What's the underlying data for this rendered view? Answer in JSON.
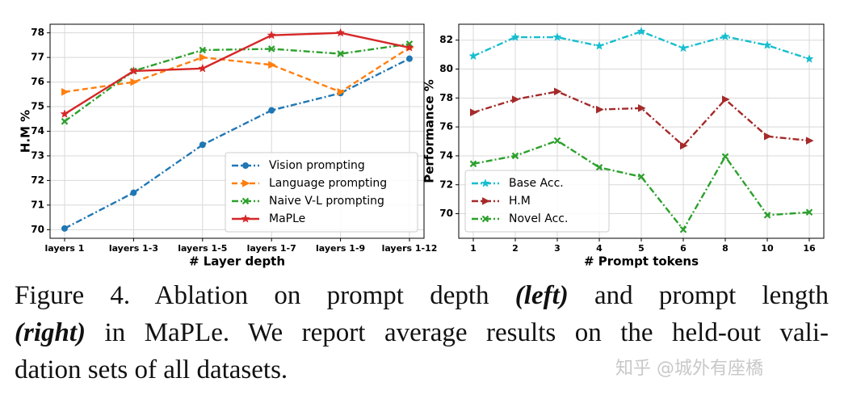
{
  "chart_data": [
    {
      "type": "line",
      "categories": [
        "layers 1",
        "layers 1-3",
        "layers 1-5",
        "layers 1-7",
        "layers 1-9",
        "layers 1-12"
      ],
      "ylim": [
        69.65,
        78.35
      ],
      "yticks": [
        70,
        71,
        72,
        73,
        74,
        75,
        76,
        77,
        78
      ],
      "ylabel": "H.M %",
      "xlabel": "# Layer depth",
      "grid": true,
      "legend": "lower right",
      "series": [
        {
          "name": "Vision prompting",
          "color": "#1f77b4",
          "linestyle": "dashdot",
          "marker": "circle",
          "values": [
            70.05,
            71.5,
            73.45,
            74.85,
            75.55,
            76.95
          ]
        },
        {
          "name": "Language prompting",
          "color": "#ff7f0e",
          "linestyle": "dashed",
          "marker": "triangle",
          "values": [
            75.6,
            76.0,
            77.0,
            76.7,
            75.6,
            77.4
          ]
        },
        {
          "name": "Naive V-L prompting",
          "color": "#2ca02c",
          "linestyle": "dashdot",
          "marker": "x",
          "values": [
            74.4,
            76.45,
            77.3,
            77.35,
            77.15,
            77.55
          ]
        },
        {
          "name": "MaPLe",
          "color": "#d62728",
          "linestyle": "solid",
          "marker": "star",
          "values": [
            74.7,
            76.45,
            76.55,
            77.9,
            78.0,
            77.4
          ]
        }
      ]
    },
    {
      "type": "line",
      "categories": [
        "1",
        "2",
        "3",
        "4",
        "5",
        "6",
        "8",
        "10",
        "16"
      ],
      "ylim": [
        68.3,
        83.1
      ],
      "yticks": [
        70,
        72,
        74,
        76,
        78,
        80,
        82
      ],
      "ylabel": "Performance %",
      "xlabel": "# Prompt tokens",
      "grid": true,
      "legend": "lower left",
      "series": [
        {
          "name": "Base Acc.",
          "color": "#17becf",
          "linestyle": "dashdot",
          "marker": "star",
          "values": [
            80.9,
            82.2,
            82.2,
            81.6,
            82.6,
            81.45,
            82.25,
            81.65,
            80.7
          ]
        },
        {
          "name": "H.M",
          "color": "#a52a2a",
          "linestyle": "dashdot",
          "marker": "triangle",
          "values": [
            77.0,
            77.9,
            78.45,
            77.2,
            77.3,
            74.7,
            77.9,
            75.35,
            75.05
          ]
        },
        {
          "name": "Novel Acc.",
          "color": "#2ca02c",
          "linestyle": "dashdot",
          "marker": "x",
          "values": [
            73.45,
            74.0,
            75.05,
            73.2,
            72.55,
            68.9,
            73.95,
            69.9,
            70.1
          ]
        }
      ]
    }
  ],
  "caption": {
    "lines": [
      [
        "Figure 4.  Ablation on prompt depth ",
        "(left)",
        " and prompt length"
      ],
      [
        "(right)",
        " in MaPLe. We report average results on the held-out vali-"
      ],
      [
        "dation sets of all datasets."
      ]
    ]
  },
  "watermark": "知乎 @城外有座橋"
}
